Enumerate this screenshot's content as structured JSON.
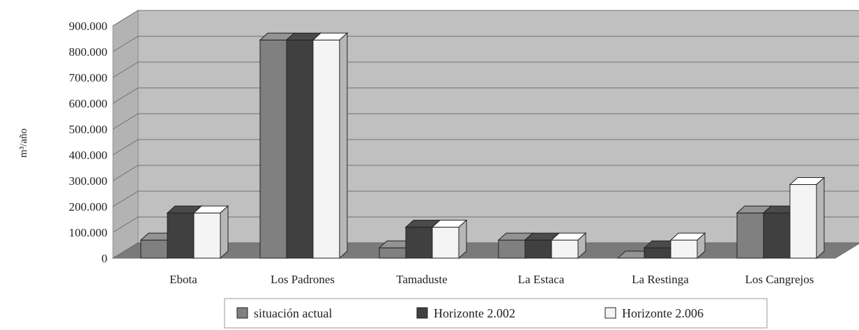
{
  "chart_data": {
    "type": "bar",
    "title": "",
    "xlabel": "",
    "ylabel": "m³/año",
    "ylim": [
      0,
      900000
    ],
    "y_ticks": [
      "0",
      "100.000",
      "200.000",
      "300.000",
      "400.000",
      "500.000",
      "600.000",
      "700.000",
      "800.000",
      "900.000"
    ],
    "categories": [
      "Ebota",
      "Los Padrones",
      "Tamaduste",
      "La Estaca",
      "La Restinga",
      "Los Cangrejos"
    ],
    "series": [
      {
        "name": "situación actual",
        "values": [
          70000,
          845000,
          40000,
          70000,
          0,
          175000
        ]
      },
      {
        "name": "Horizonte 2.002",
        "values": [
          175000,
          845000,
          120000,
          70000,
          40000,
          175000
        ]
      },
      {
        "name": "Horizonte 2.006",
        "values": [
          175000,
          845000,
          120000,
          70000,
          70000,
          285000
        ]
      }
    ],
    "grid": true,
    "legend_position": "bottom",
    "colors": {
      "series": [
        "#808080",
        "#404040",
        "#f4f4f4"
      ],
      "wall": "#c0c0c0",
      "floor": "#7a7a7a",
      "grid": "#6f6f6f"
    }
  }
}
